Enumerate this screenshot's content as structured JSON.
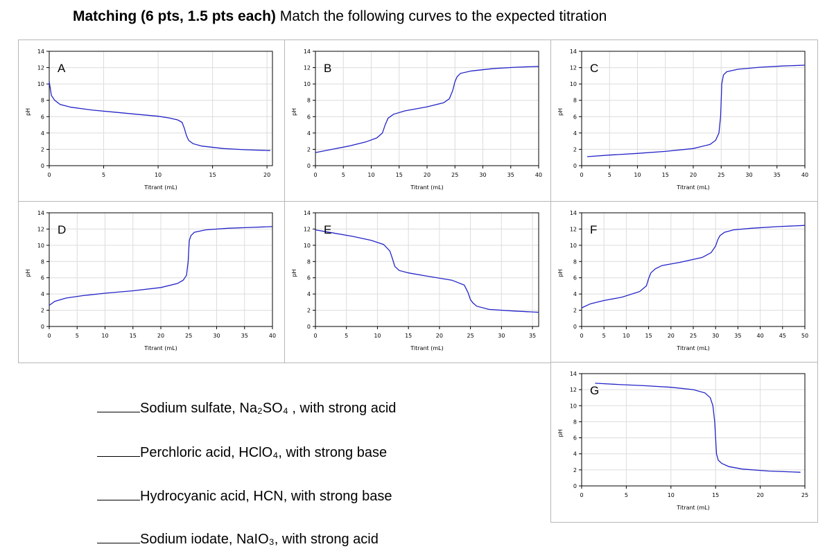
{
  "header": {
    "title_bold": "Matching (6 pts, 1.5 pts each)",
    "title_rest": " Match the following curves to the expected titration"
  },
  "colors": {
    "curve": "#2323c8",
    "grid": "#dcdcdc",
    "border": "#b7b7b7"
  },
  "chart_data": [
    {
      "id": "A",
      "type": "line",
      "title": "A",
      "xlabel": "Titrant (mL)",
      "ylabel": "pH",
      "xlim": [
        0,
        20.5
      ],
      "ylim": [
        0,
        14
      ],
      "xticks": [
        0,
        5,
        10,
        15,
        20
      ],
      "yticks": [
        0,
        2,
        4,
        6,
        8,
        10,
        12,
        14
      ],
      "series": [
        {
          "name": "pH",
          "x": [
            0,
            0.2,
            0.5,
            1,
            2,
            4,
            6,
            8,
            10,
            11,
            11.8,
            12.2,
            12.4,
            12.6,
            12.8,
            13.2,
            14,
            16,
            18,
            20.3
          ],
          "y": [
            10.3,
            8.6,
            8.0,
            7.5,
            7.15,
            6.8,
            6.55,
            6.3,
            6.05,
            5.85,
            5.6,
            5.3,
            4.6,
            3.7,
            3.1,
            2.7,
            2.4,
            2.1,
            1.95,
            1.85
          ]
        }
      ]
    },
    {
      "id": "B",
      "type": "line",
      "title": "B",
      "xlabel": "Titrant (mL)",
      "ylabel": "pH",
      "xlim": [
        0,
        40
      ],
      "ylim": [
        0,
        14
      ],
      "xticks": [
        0,
        5,
        10,
        15,
        20,
        25,
        30,
        35,
        40
      ],
      "yticks": [
        0,
        2,
        4,
        6,
        8,
        10,
        12,
        14
      ],
      "series": [
        {
          "name": "pH",
          "x": [
            0,
            3,
            6,
            9,
            11,
            12,
            12.5,
            13,
            14,
            16,
            20,
            23,
            24,
            24.6,
            25,
            25.4,
            26,
            28,
            32,
            36,
            40
          ],
          "y": [
            1.6,
            2.0,
            2.4,
            2.9,
            3.4,
            4.0,
            5.0,
            5.8,
            6.3,
            6.7,
            7.2,
            7.7,
            8.2,
            9.2,
            10.3,
            10.9,
            11.3,
            11.6,
            11.9,
            12.05,
            12.15
          ]
        }
      ]
    },
    {
      "id": "C",
      "type": "line",
      "title": "C",
      "xlabel": "Titrant (mL)",
      "ylabel": "pH",
      "xlim": [
        0,
        40
      ],
      "ylim": [
        0,
        14
      ],
      "xticks": [
        0,
        5,
        10,
        15,
        20,
        25,
        30,
        35,
        40
      ],
      "yticks": [
        0,
        2,
        4,
        6,
        8,
        10,
        12,
        14
      ],
      "series": [
        {
          "name": "pH",
          "x": [
            1,
            5,
            10,
            15,
            20,
            23,
            24,
            24.6,
            24.9,
            25,
            25.1,
            25.4,
            26,
            28,
            32,
            36,
            40
          ],
          "y": [
            1.1,
            1.3,
            1.5,
            1.75,
            2.1,
            2.6,
            3.1,
            4.0,
            6.0,
            8.0,
            10.0,
            11.1,
            11.5,
            11.8,
            12.05,
            12.2,
            12.3
          ]
        }
      ]
    },
    {
      "id": "D",
      "type": "line",
      "title": "D",
      "xlabel": "Titrant (mL)",
      "ylabel": "pH",
      "xlim": [
        0,
        40
      ],
      "ylim": [
        0,
        14
      ],
      "xticks": [
        0,
        5,
        10,
        15,
        20,
        25,
        30,
        35,
        40
      ],
      "yticks": [
        0,
        2,
        4,
        6,
        8,
        10,
        12,
        14
      ],
      "series": [
        {
          "name": "pH",
          "x": [
            0,
            1,
            3,
            6,
            10,
            15,
            20,
            23,
            24,
            24.6,
            24.9,
            25,
            25.1,
            25.4,
            26,
            28,
            32,
            36,
            40
          ],
          "y": [
            2.6,
            3.1,
            3.5,
            3.8,
            4.1,
            4.4,
            4.8,
            5.3,
            5.7,
            6.3,
            8.0,
            9.5,
            10.6,
            11.2,
            11.6,
            11.9,
            12.1,
            12.2,
            12.3
          ]
        }
      ]
    },
    {
      "id": "E",
      "type": "line",
      "title": "E",
      "xlabel": "Titrant (mL)",
      "ylabel": "pH",
      "xlim": [
        0,
        36
      ],
      "ylim": [
        0,
        14
      ],
      "xticks": [
        0,
        5,
        10,
        15,
        20,
        25,
        30,
        35
      ],
      "yticks": [
        0,
        2,
        4,
        6,
        8,
        10,
        12,
        14
      ],
      "series": [
        {
          "name": "pH",
          "x": [
            0,
            3,
            6,
            9,
            11,
            12,
            12.4,
            12.8,
            13.5,
            15,
            18,
            22,
            24,
            24.6,
            25,
            25.4,
            26,
            28,
            32,
            36
          ],
          "y": [
            11.9,
            11.5,
            11.1,
            10.6,
            10.1,
            9.3,
            8.4,
            7.4,
            6.9,
            6.6,
            6.2,
            5.7,
            5.1,
            4.2,
            3.3,
            2.9,
            2.5,
            2.1,
            1.9,
            1.75
          ]
        }
      ]
    },
    {
      "id": "F",
      "type": "line",
      "title": "F",
      "xlabel": "Titrant (mL)",
      "ylabel": "pH",
      "xlim": [
        0,
        50
      ],
      "ylim": [
        0,
        14
      ],
      "xticks": [
        0,
        5,
        10,
        15,
        20,
        25,
        30,
        35,
        40,
        45,
        50
      ],
      "yticks": [
        0,
        2,
        4,
        6,
        8,
        10,
        12,
        14
      ],
      "series": [
        {
          "name": "pH",
          "x": [
            0,
            2,
            5,
            9,
            13,
            14.5,
            15,
            15.5,
            16.5,
            18,
            22,
            27,
            29,
            30,
            30.5,
            31,
            32,
            34,
            38,
            44,
            50
          ],
          "y": [
            2.3,
            2.8,
            3.2,
            3.6,
            4.3,
            5.0,
            5.9,
            6.6,
            7.1,
            7.5,
            7.9,
            8.5,
            9.1,
            9.9,
            10.7,
            11.2,
            11.6,
            11.9,
            12.1,
            12.3,
            12.45
          ]
        }
      ]
    },
    {
      "id": "G",
      "type": "line",
      "title": "G",
      "xlabel": "Titrant (mL)",
      "ylabel": "pH",
      "xlim": [
        0,
        25
      ],
      "ylim": [
        0,
        14
      ],
      "xticks": [
        0,
        5,
        10,
        15,
        20,
        25
      ],
      "yticks": [
        0,
        2,
        4,
        6,
        8,
        10,
        12,
        14
      ],
      "series": [
        {
          "name": "pH",
          "x": [
            1.5,
            4,
            7,
            10,
            12.5,
            13.8,
            14.4,
            14.7,
            14.9,
            15,
            15.1,
            15.3,
            15.7,
            16.5,
            18,
            21,
            24.5
          ],
          "y": [
            12.8,
            12.65,
            12.5,
            12.3,
            12.0,
            11.6,
            11.0,
            10.0,
            8.0,
            6.0,
            4.0,
            3.2,
            2.8,
            2.4,
            2.1,
            1.85,
            1.7
          ]
        }
      ]
    }
  ],
  "matching": [
    {
      "text": "Sodium sulfate, Na₂SO₄ , with strong acid"
    },
    {
      "text": "Perchloric acid, HClO₄, with strong base"
    },
    {
      "text": "Hydrocyanic acid, HCN, with strong base"
    },
    {
      "text": "Sodium iodate, NaIO₃, with strong acid"
    }
  ]
}
